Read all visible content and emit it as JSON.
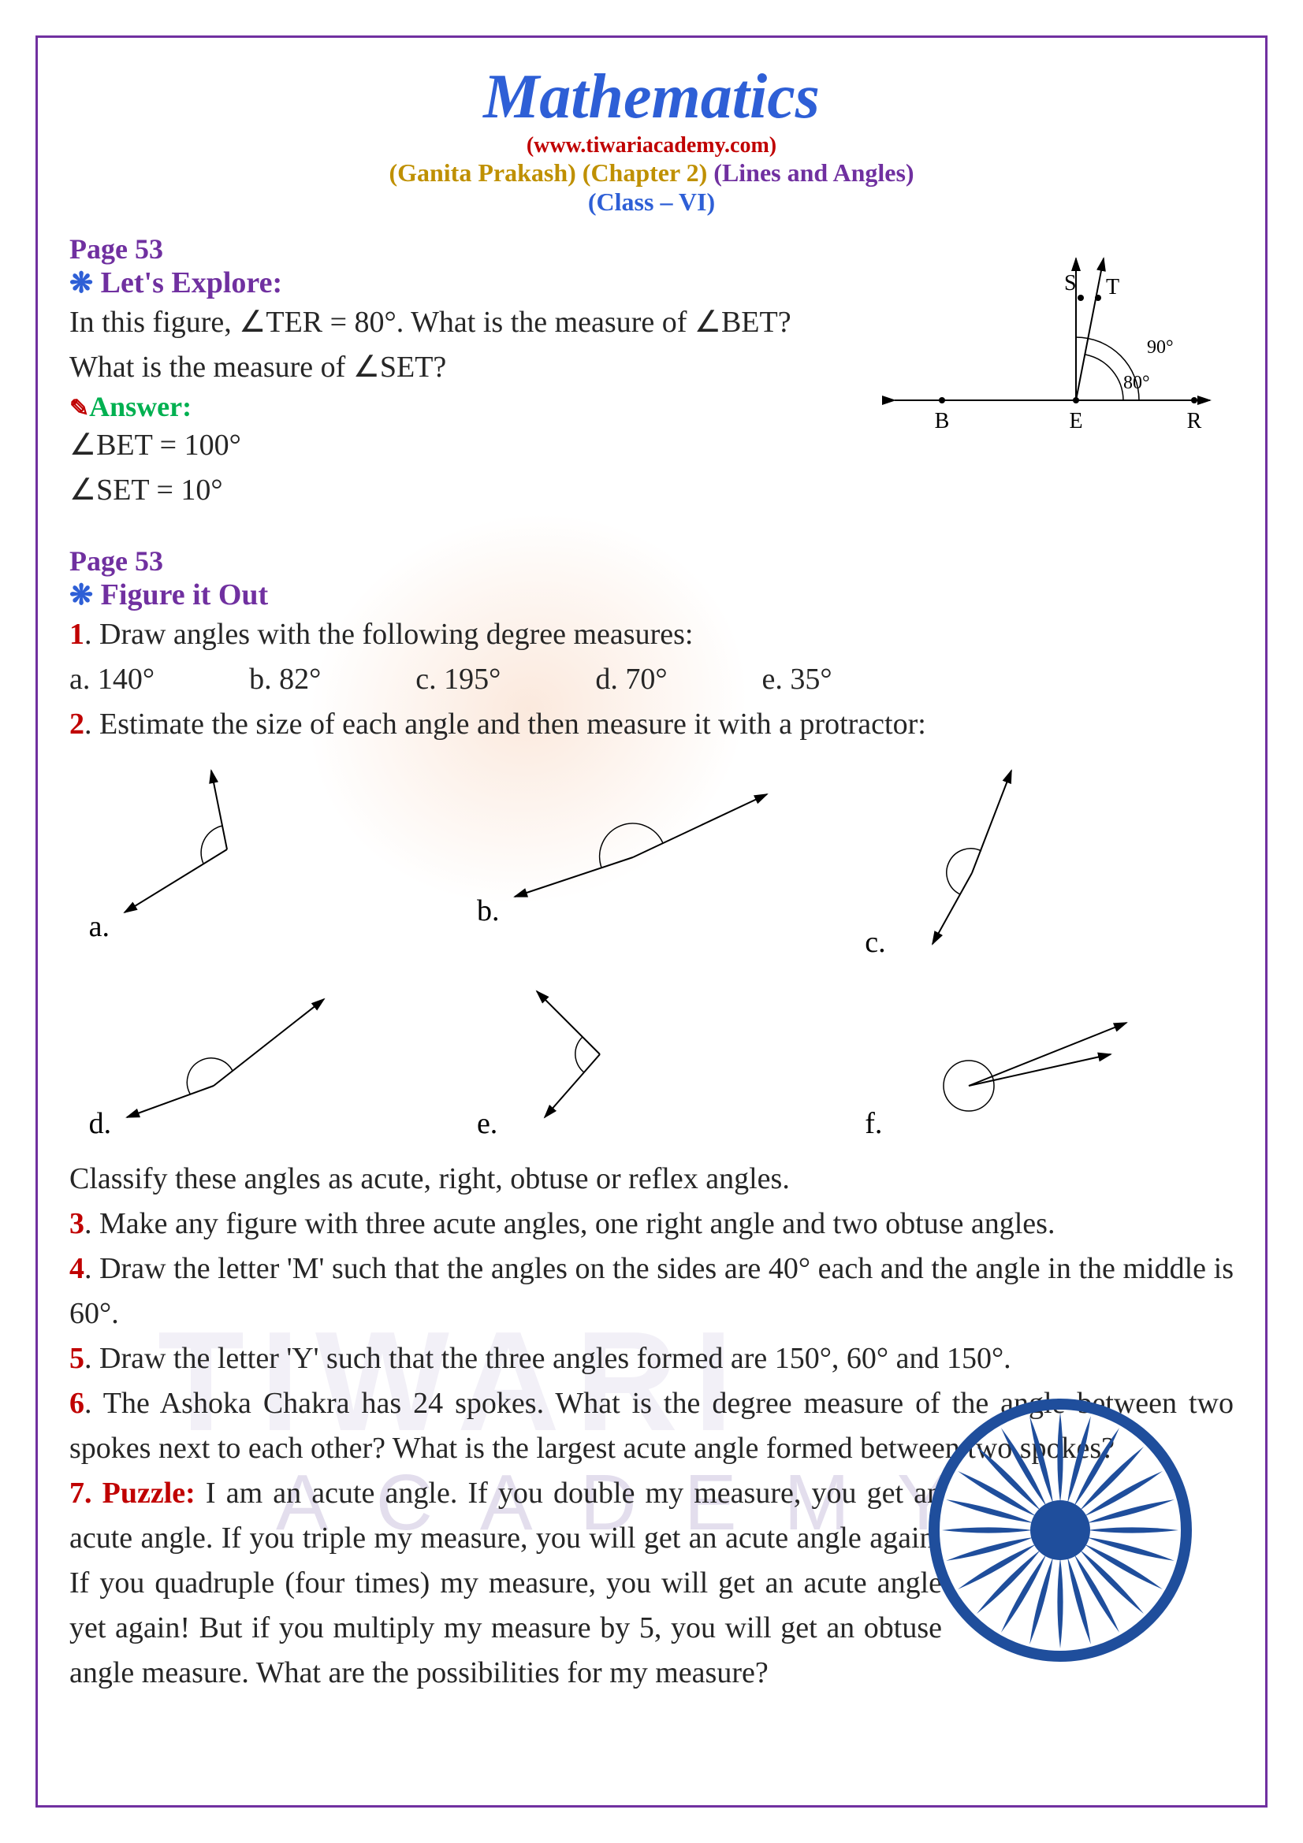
{
  "header": {
    "title": "Mathematics",
    "website": "(www.tiwariacademy.com)",
    "book": "(Ganita Prakash)",
    "chapter": "(Chapter 2)",
    "topic": "(Lines and Angles)",
    "class": "(Class – VI)"
  },
  "section1": {
    "page_ref": "Page 53",
    "header": "Let's Explore:",
    "question_l1": "In this figure, ∠TER = 80°. What is the measure of ∠BET?",
    "question_l2": "What is the measure of ∠SET?",
    "answer_label": "Answer:",
    "answer_l1": "∠BET = 100°",
    "answer_l2": "∠SET = 10°"
  },
  "diagram": {
    "labels": {
      "S": "S",
      "T": "T",
      "B": "B",
      "E": "E",
      "R": "R"
    },
    "angle90": "90°",
    "angle80": "80°"
  },
  "section2": {
    "page_ref": "Page 53",
    "header": "Figure it Out",
    "q1": {
      "num": "1",
      "text": ". Draw angles with the following degree measures:",
      "a": "a. 140°",
      "b": "b. 82°",
      "c": "c. 195°",
      "d": "d. 70°",
      "e": "e. 35°"
    },
    "q2": {
      "num": "2",
      "text": ". Estimate the size of each angle and then measure it with a protractor:",
      "labels": {
        "a": "a.",
        "b": "b.",
        "c": "c.",
        "d": "d.",
        "e": "e.",
        "f": "f."
      },
      "classify": "Classify these angles as acute, right, obtuse or reflex angles."
    },
    "q3": {
      "num": "3",
      "text": ". Make any figure with three acute angles, one right angle and two obtuse angles."
    },
    "q4": {
      "num": "4",
      "text": ". Draw the letter 'M' such that the angles on the sides are 40° each and the angle in the middle is 60°."
    },
    "q5": {
      "num": "5",
      "text": ". Draw the letter 'Y' such that the three angles formed are 150°, 60° and 150°."
    },
    "q6": {
      "num": "6",
      "text": ". The Ashoka Chakra has 24 spokes. What is the degree measure of the angle between two spokes next to each other? What is the largest acute angle formed between two spokes?"
    },
    "q7": {
      "num": "7",
      "label": ". Puzzle:",
      "text": " I am an acute angle. If you double my measure, you get an acute angle. If you triple my measure, you will get an acute angle again. If you quadruple (four times) my measure, you will get an acute angle yet again! But if you multiply my measure by 5, you will get an obtuse angle measure. What are the possibilities for my measure?"
    }
  },
  "style": {
    "title_color": "#2e5fd6",
    "accent_color": "#7030a0",
    "red_color": "#c00000",
    "gold_color": "#bf9000",
    "green_color": "#00b050",
    "text_color": "#262626",
    "chakra_color": "#1f4e9c"
  }
}
